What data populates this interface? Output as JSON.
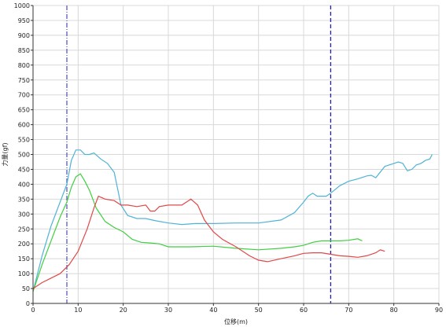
{
  "chart_data": {
    "type": "line",
    "xlabel": "位移(m)",
    "ylabel": "力量(gf)",
    "xlim": [
      0,
      90
    ],
    "ylim": [
      0,
      1000
    ],
    "x_ticks": [
      0,
      10,
      20,
      30,
      40,
      50,
      60,
      70,
      80,
      90
    ],
    "y_ticks": [
      0,
      50,
      100,
      150,
      200,
      250,
      300,
      350,
      400,
      450,
      500,
      550,
      600,
      650,
      700,
      750,
      800,
      850,
      900,
      950,
      1000
    ],
    "grid": true,
    "markers": [
      {
        "x": 7.5,
        "style": "dash-dot",
        "color": "#5a5ab4"
      },
      {
        "x": 66,
        "style": "dashed",
        "color": "#1f1fb4"
      }
    ],
    "series": [
      {
        "color": "#4fb3d6",
        "x": [
          0,
          2,
          4,
          6,
          7.5,
          8.5,
          9.5,
          10.5,
          11.5,
          12.5,
          13.5,
          15,
          16.5,
          18,
          19.5,
          21,
          23,
          25,
          27,
          30,
          33,
          36,
          40,
          45,
          50,
          55,
          58,
          60,
          61,
          62,
          63,
          65,
          66,
          68,
          70,
          72,
          74,
          75,
          76,
          78,
          80,
          81,
          82,
          83,
          84,
          85,
          86,
          87,
          88,
          88.5
        ],
        "y": [
          40,
          160,
          260,
          340,
          400,
          480,
          515,
          515,
          500,
          500,
          505,
          485,
          470,
          440,
          330,
          295,
          285,
          285,
          278,
          270,
          265,
          268,
          268,
          270,
          270,
          280,
          305,
          340,
          360,
          370,
          360,
          360,
          370,
          395,
          410,
          418,
          428,
          430,
          422,
          460,
          470,
          475,
          470,
          445,
          450,
          465,
          470,
          480,
          485,
          500
        ]
      },
      {
        "color": "#3fcf3f",
        "x": [
          0,
          2,
          4,
          6,
          7.5,
          8.5,
          9.5,
          10.5,
          11.5,
          12.5,
          14,
          16,
          18,
          20,
          22,
          24,
          26,
          28,
          30,
          35,
          40,
          45,
          50,
          55,
          58,
          60,
          62,
          64,
          66,
          68,
          70,
          72,
          73
        ],
        "y": [
          40,
          130,
          210,
          290,
          340,
          390,
          425,
          435,
          410,
          380,
          320,
          275,
          255,
          240,
          215,
          205,
          203,
          200,
          190,
          190,
          192,
          185,
          180,
          185,
          190,
          195,
          205,
          210,
          210,
          210,
          212,
          217,
          210
        ]
      },
      {
        "color": "#e04848",
        "x": [
          0,
          2,
          4,
          6,
          8,
          10,
          12,
          13.5,
          14.5,
          16,
          18,
          19.5,
          21,
          23,
          25,
          26,
          27,
          28,
          30,
          33,
          35,
          36.5,
          38,
          40,
          42,
          45,
          48,
          50,
          52,
          55,
          58,
          60,
          62,
          64,
          66,
          68,
          70,
          72,
          74,
          76,
          77,
          78
        ],
        "y": [
          50,
          70,
          85,
          100,
          130,
          175,
          250,
          320,
          360,
          350,
          345,
          330,
          330,
          325,
          330,
          310,
          310,
          325,
          330,
          330,
          350,
          330,
          280,
          240,
          215,
          190,
          160,
          145,
          140,
          150,
          160,
          168,
          170,
          170,
          165,
          160,
          158,
          155,
          160,
          170,
          180,
          175
        ]
      }
    ]
  }
}
